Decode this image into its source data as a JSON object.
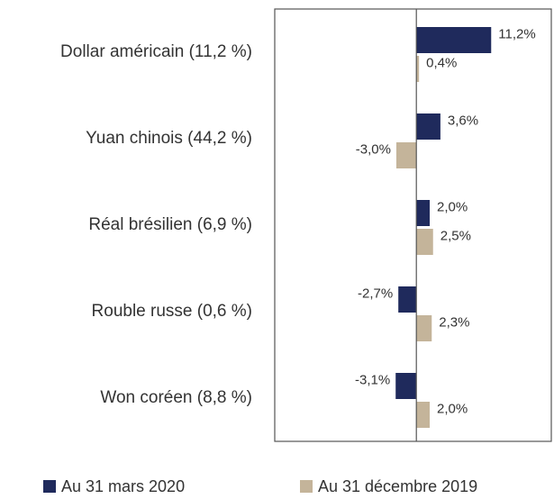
{
  "chart_data": {
    "type": "hbar",
    "categories": [
      "Dollar américain (11,2 %)",
      "Yuan chinois (44,2 %)",
      "Réal brésilien (6,9 %)",
      "Rouble russe (0,6 %)",
      "Won coréen (8,8 %)"
    ],
    "series": [
      {
        "name": "Au 31 mars 2020",
        "color": "#1f2a5c",
        "values": [
          11.2,
          3.6,
          2.0,
          -2.7,
          -3.1
        ],
        "value_labels": [
          "11,2%",
          "3,6%",
          "2,0%",
          "-2,7%",
          "-3,1%"
        ]
      },
      {
        "name": "Au 31 décembre 2019",
        "color": "#c4b49a",
        "values": [
          0.4,
          -3.0,
          2.5,
          2.3,
          2.0
        ],
        "value_labels": [
          "0,4%",
          "-3,0%",
          "2,5%",
          "2,3%",
          "2,0%"
        ]
      }
    ],
    "xlim": [
      -21.2,
      20.2
    ],
    "legend": "bottom"
  }
}
